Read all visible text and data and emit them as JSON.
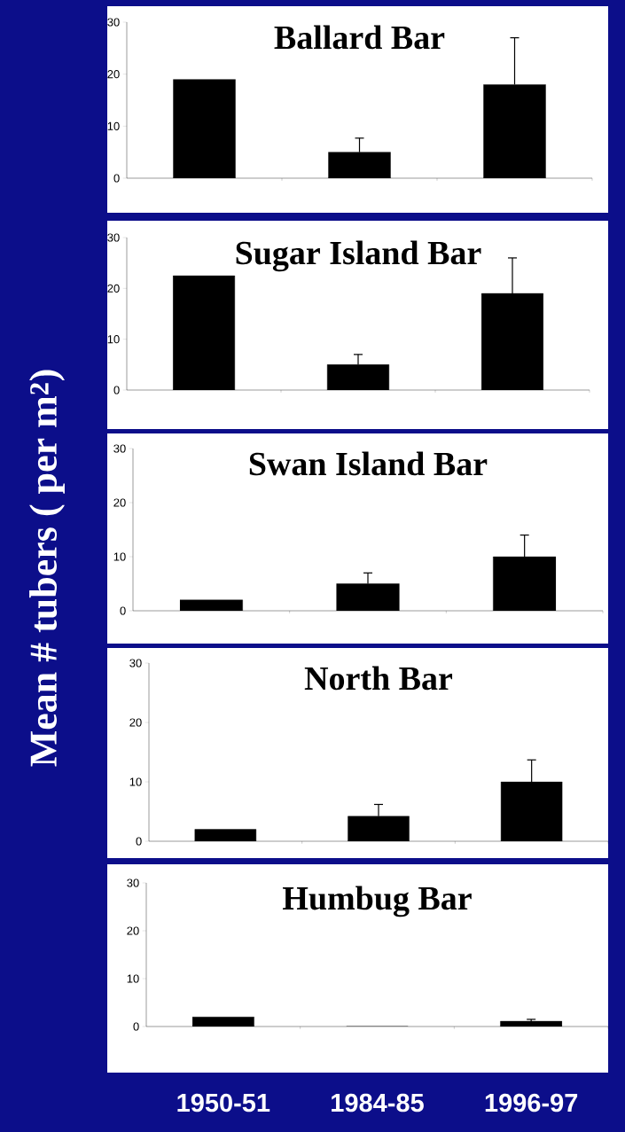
{
  "chart_data": [
    {
      "type": "bar",
      "title": "Ballard Bar",
      "categories": [
        "1950-51",
        "1984-85",
        "1996-97"
      ],
      "values": [
        19,
        5,
        18
      ],
      "errors": [
        null,
        2.7,
        9
      ],
      "color": "#000000",
      "ylim": [
        0,
        30
      ],
      "yticks": [
        0,
        10,
        20,
        30
      ],
      "tick_labels": "y"
    },
    {
      "type": "bar",
      "title": "Sugar Island Bar",
      "categories": [
        "1950-51",
        "1984-85",
        "1996-97"
      ],
      "values": [
        22.5,
        5,
        19
      ],
      "errors": [
        null,
        2,
        7
      ],
      "color": "#000000",
      "ylim": [
        0,
        30
      ],
      "yticks": [
        0,
        10,
        20,
        30
      ],
      "tick_labels": "y"
    },
    {
      "type": "bar",
      "title": "Swan Island Bar",
      "ylabel": "Mean # tubers ( per m$^{2}$)",
      "categories": [
        "1950-51",
        "1984-85",
        "1996-97"
      ],
      "values": [
        2,
        5,
        10
      ],
      "errors": [
        null,
        2,
        4
      ],
      "color": "#000000",
      "ylim": [
        0,
        30
      ],
      "yticks": [
        0,
        10,
        20,
        30
      ],
      "tick_labels": "y"
    },
    {
      "type": "bar",
      "title": "North Bar",
      "categories": [
        "1950-51",
        "1984-85",
        "1996-97"
      ],
      "values": [
        2,
        4.2,
        10
      ],
      "errors": [
        null,
        2,
        3.7
      ],
      "color": "#000000",
      "ylim": [
        0,
        30
      ],
      "yticks": [
        0,
        10,
        20,
        30
      ],
      "tick_labels": "y"
    },
    {
      "type": "bar",
      "title": "Humbug Bar",
      "categories": [
        "1950-51",
        "1984-85",
        "1996-97"
      ],
      "values": [
        2,
        0,
        1.1
      ],
      "errors": [
        null,
        null,
        0.4
      ],
      "color": "#000000",
      "ylim": [
        0,
        30
      ],
      "yticks": [
        0,
        10,
        20,
        30
      ]
    }
  ]
}
